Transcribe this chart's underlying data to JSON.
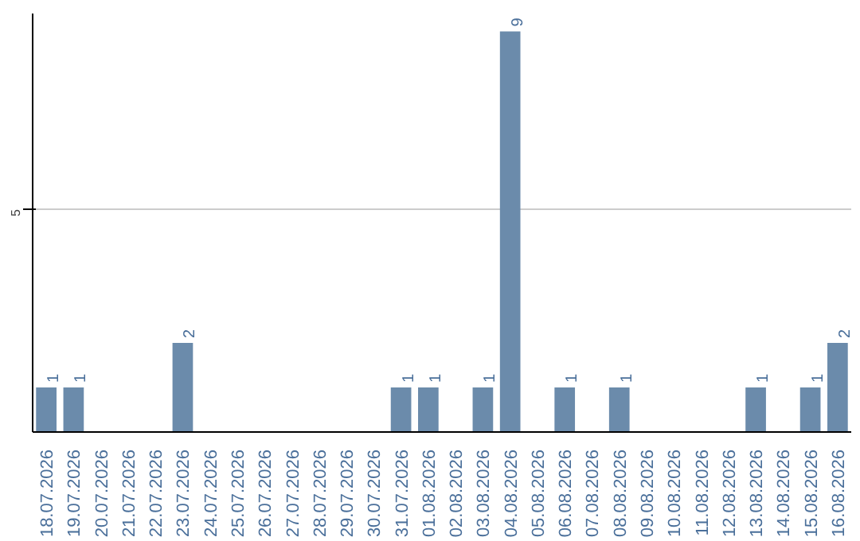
{
  "chart_data": {
    "type": "bar",
    "categories": [
      "18.07.2026",
      "19.07.2026",
      "20.07.2026",
      "21.07.2026",
      "22.07.2026",
      "23.07.2026",
      "24.07.2026",
      "25.07.2026",
      "26.07.2026",
      "27.07.2026",
      "28.07.2026",
      "29.07.2026",
      "30.07.2026",
      "31.07.2026",
      "01.08.2026",
      "02.08.2026",
      "03.08.2026",
      "04.08.2026",
      "05.08.2026",
      "06.08.2026",
      "07.08.2026",
      "08.08.2026",
      "09.08.2026",
      "10.08.2026",
      "11.08.2026",
      "12.08.2026",
      "13.08.2026",
      "14.08.2026",
      "15.08.2026",
      "16.08.2026"
    ],
    "values": [
      1,
      1,
      0,
      0,
      0,
      2,
      0,
      0,
      0,
      0,
      0,
      0,
      0,
      1,
      1,
      0,
      1,
      9,
      0,
      1,
      0,
      1,
      0,
      0,
      0,
      0,
      1,
      0,
      1,
      2
    ],
    "value_labels": [
      "1",
      "1",
      null,
      null,
      null,
      "2",
      null,
      null,
      null,
      null,
      null,
      null,
      null,
      "1",
      "1",
      null,
      "1",
      "9",
      null,
      "1",
      null,
      "1",
      null,
      null,
      null,
      null,
      "1",
      null,
      "1",
      "2"
    ],
    "color": "#6b8bab",
    "ylim": [
      0,
      9.4
    ],
    "yticks": [
      5
    ],
    "grid": "y"
  }
}
